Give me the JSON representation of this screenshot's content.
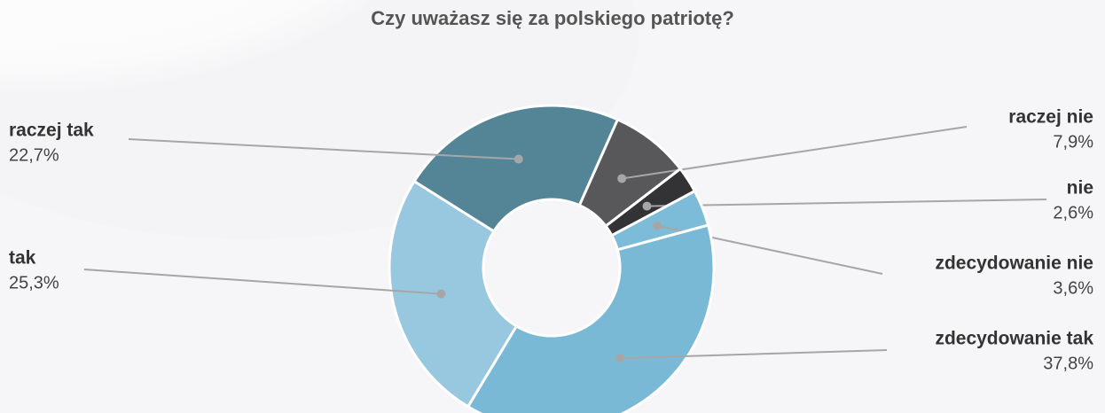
{
  "chart_data": {
    "type": "donut",
    "title": "Czy uważasz się za polskiego patriotę?",
    "categories": [
      "raczej nie",
      "nie",
      "zdecydowanie nie",
      "zdecydowanie tak",
      "tak",
      "raczej tak"
    ],
    "values": [
      7.9,
      2.6,
      3.6,
      37.8,
      25.3,
      22.7
    ],
    "value_labels": [
      "7,9%",
      "2,6%",
      "3,6%",
      "37,8%",
      "25,3%",
      "22,7%"
    ],
    "colors": [
      "#58585a",
      "#333335",
      "#7dbcd9",
      "#7ab9d6",
      "#98c8e0",
      "#548596"
    ]
  }
}
